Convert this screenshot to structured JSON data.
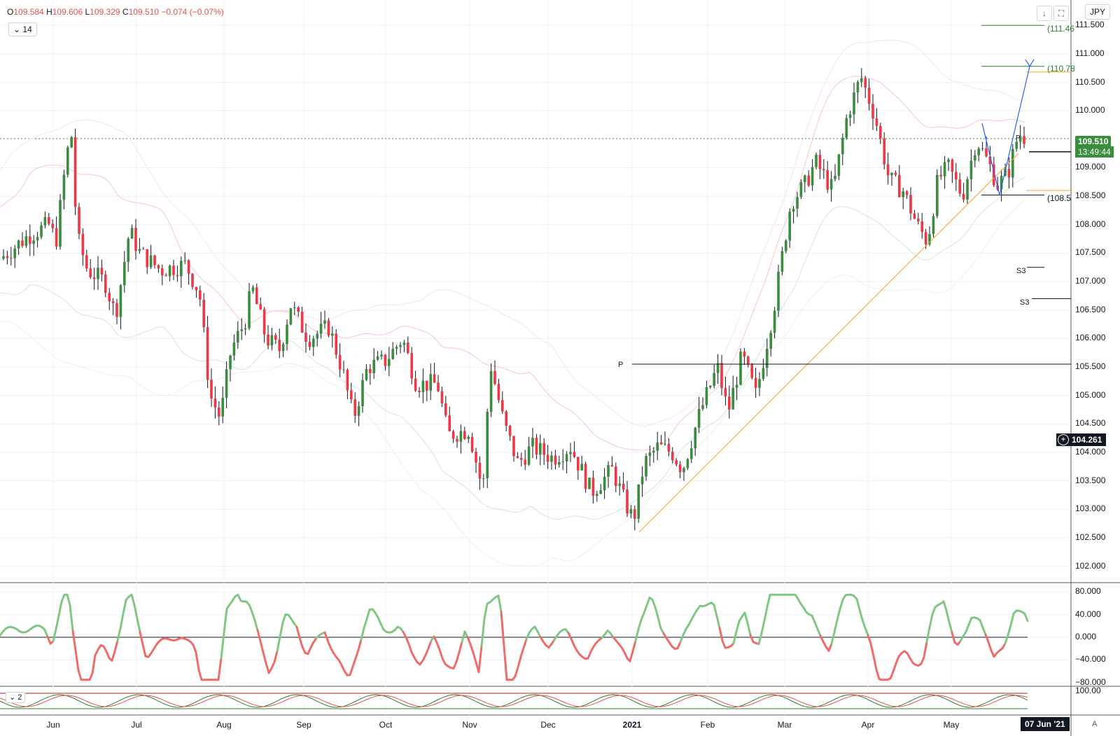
{
  "header": {
    "open_label": "O",
    "open": "109.584",
    "high_label": "H",
    "high": "109.606",
    "low_label": "L",
    "low": "109.329",
    "close_label": "C",
    "close": "109.510",
    "change": "−0.074 (−0.07%)",
    "indicator_param": "14",
    "indicator2_param": "2",
    "currency": "JPY",
    "down_arrow_icon": "↓",
    "fullscreen_icon": "⛶"
  },
  "price_axis": {
    "labels": [
      "111.500",
      "111.000",
      "110.500",
      "110.000",
      "109.000",
      "108.500",
      "108.000",
      "107.500",
      "107.000",
      "106.500",
      "106.000",
      "105.500",
      "105.000",
      "104.500",
      "104.000",
      "103.500",
      "103.000",
      "102.500",
      "102.000"
    ],
    "current_price": "109.510",
    "countdown": "13:49:44",
    "crosshair_price": "104.261"
  },
  "osc_axis": {
    "labels": [
      "80.000",
      "40.000",
      "0.000",
      "−40.000",
      "−80.000"
    ]
  },
  "osc2_axis": {
    "label": "100.00"
  },
  "time_axis": {
    "labels": [
      "Jun",
      "Jul",
      "Aug",
      "Sep",
      "Oct",
      "Nov",
      "Dec",
      "2021",
      "Feb",
      "Mar",
      "Apr",
      "May"
    ],
    "current_date": "07 Jun '21",
    "auto_button": "A"
  },
  "annotations": {
    "target_upper": "(111.46",
    "target_mid": "(110.78",
    "target_low": "(108.5",
    "pivot_p": "P",
    "pivot_s3_a": "S3",
    "pivot_s3_b": "S3",
    "fib_small": "P"
  },
  "colors": {
    "up": "#388e3c",
    "down": "#f23645",
    "trendline": "#f5a623",
    "projection": "#2962ff",
    "osc_up": "#81c784",
    "osc_down": "#ef6c6c",
    "bands": "#f8c6c6",
    "bands_inner": "#cfe8d6"
  }
}
